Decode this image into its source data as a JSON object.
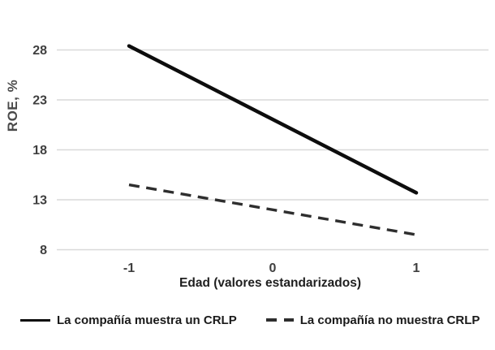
{
  "chart_data": {
    "type": "line",
    "title": "",
    "xlabel": "Edad (valores estandarizados)",
    "ylabel": "ROE, %",
    "x": [
      -1,
      1
    ],
    "series": [
      {
        "name": "La compañía muestra un CRLP",
        "style": "solid",
        "values": [
          28.4,
          13.7
        ]
      },
      {
        "name": "La compañía no muestra CRLP",
        "style": "dashed",
        "values": [
          14.5,
          9.5
        ]
      }
    ],
    "xticks": [
      -1,
      0,
      1
    ],
    "yticks": [
      8,
      13,
      18,
      23,
      28
    ],
    "ylim": [
      8,
      30
    ],
    "grid": "horizontal",
    "legend_position": "bottom",
    "colors": {
      "solid_line": "#0d0d0d",
      "dashed_line": "#2e2e2e",
      "gridline": "#d9d9d9",
      "tick_label": "#3f3f3f",
      "axis_title": "#1f1f1f",
      "background": "#ffffff"
    }
  }
}
